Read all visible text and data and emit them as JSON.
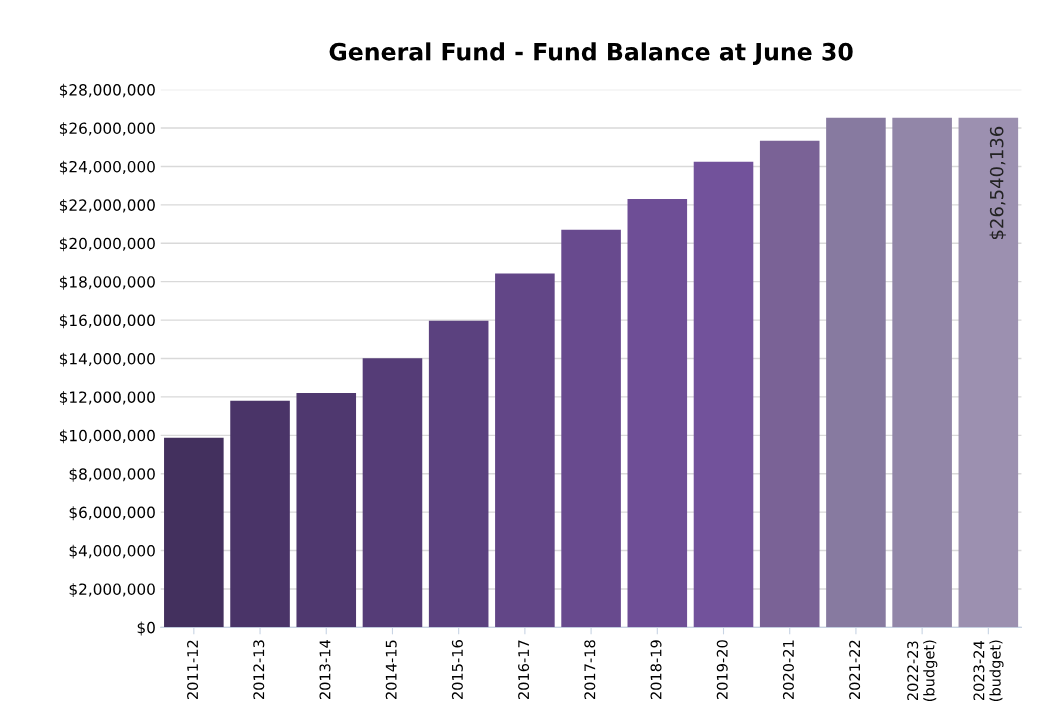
{
  "chart_data": {
    "type": "bar",
    "title": "General Fund - Fund Balance at June 30",
    "categories": [
      "2011-12",
      "2012-13",
      "2013-14",
      "2014-15",
      "2015-16",
      "2016-17",
      "2017-18",
      "2018-19",
      "2019-20",
      "2020-21",
      "2021-22",
      "2022-23\n(budget)",
      "2023-24\n(budget)"
    ],
    "values": [
      9880000,
      11800000,
      12210000,
      14010000,
      15960000,
      18430000,
      20700000,
      22310000,
      24250000,
      25340000,
      26540000,
      26540000,
      26540136
    ],
    "colors": [
      "#43305e",
      "#4a3468",
      "#4f386f",
      "#553c77",
      "#5b417f",
      "#624687",
      "#684a8e",
      "#6e4e96",
      "#72529b",
      "#7a6296",
      "#877aa0",
      "#9286a8",
      "#9c90b0"
    ],
    "value_labels": [
      null,
      null,
      null,
      null,
      null,
      null,
      null,
      null,
      null,
      null,
      null,
      null,
      "$26,540,136"
    ],
    "ylim": [
      0,
      28000000
    ],
    "yticks": [
      {
        "value": 0,
        "label": "$0"
      },
      {
        "value": 2000000,
        "label": "$2,000,000"
      },
      {
        "value": 4000000,
        "label": "$4,000,000"
      },
      {
        "value": 6000000,
        "label": "$6,000,000"
      },
      {
        "value": 8000000,
        "label": "$8,000,000"
      },
      {
        "value": 10000000,
        "label": "$10,000,000"
      },
      {
        "value": 12000000,
        "label": "$12,000,000"
      },
      {
        "value": 14000000,
        "label": "$14,000,000"
      },
      {
        "value": 16000000,
        "label": "$16,000,000"
      },
      {
        "value": 18000000,
        "label": "$18,000,000"
      },
      {
        "value": 20000000,
        "label": "$20,000,000"
      },
      {
        "value": 22000000,
        "label": "$22,000,000"
      },
      {
        "value": 24000000,
        "label": "$24,000,000"
      },
      {
        "value": 26000000,
        "label": "$26,000,000"
      },
      {
        "value": 28000000,
        "label": "$28,000,000"
      }
    ],
    "grid": "y"
  }
}
